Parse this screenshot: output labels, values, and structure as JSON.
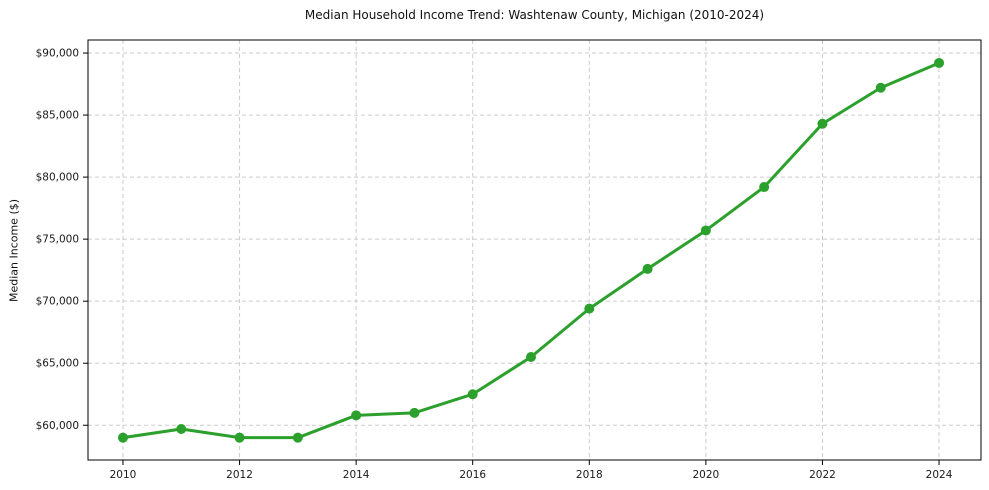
{
  "chart_data": {
    "type": "line",
    "title": "Median Household Income Trend: Washtenaw County, Michigan (2010-2024)",
    "xlabel": "",
    "ylabel": "Median Income ($)",
    "x": [
      2010,
      2011,
      2012,
      2013,
      2014,
      2015,
      2016,
      2017,
      2018,
      2019,
      2020,
      2021,
      2022,
      2023,
      2024
    ],
    "values": [
      59000,
      59700,
      59000,
      59000,
      60800,
      61000,
      62500,
      65500,
      69400,
      72600,
      75700,
      79200,
      84300,
      87200,
      89200
    ],
    "xticks": [
      2010,
      2012,
      2014,
      2016,
      2018,
      2020,
      2022,
      2024
    ],
    "xtick_labels": [
      "2010",
      "2012",
      "2014",
      "2016",
      "2018",
      "2020",
      "2022",
      "2024"
    ],
    "yticks": [
      60000,
      65000,
      70000,
      75000,
      80000,
      85000,
      90000
    ],
    "ytick_labels": [
      "$60,000",
      "$65,000",
      "$70,000",
      "$75,000",
      "$80,000",
      "$85,000",
      "$90,000"
    ],
    "xlim": [
      2009.4,
      2024.72
    ],
    "ylim": [
      57200,
      91050
    ],
    "grid": true,
    "grid_style": "dashed",
    "legend_position": "none",
    "line_color": "#2ca02c",
    "marker_color": "#2ca02c",
    "grid_color": "#cccccc",
    "spine_color": "#000000",
    "tick_label_color": "#1a1a1a",
    "background_color": "#ffffff"
  }
}
